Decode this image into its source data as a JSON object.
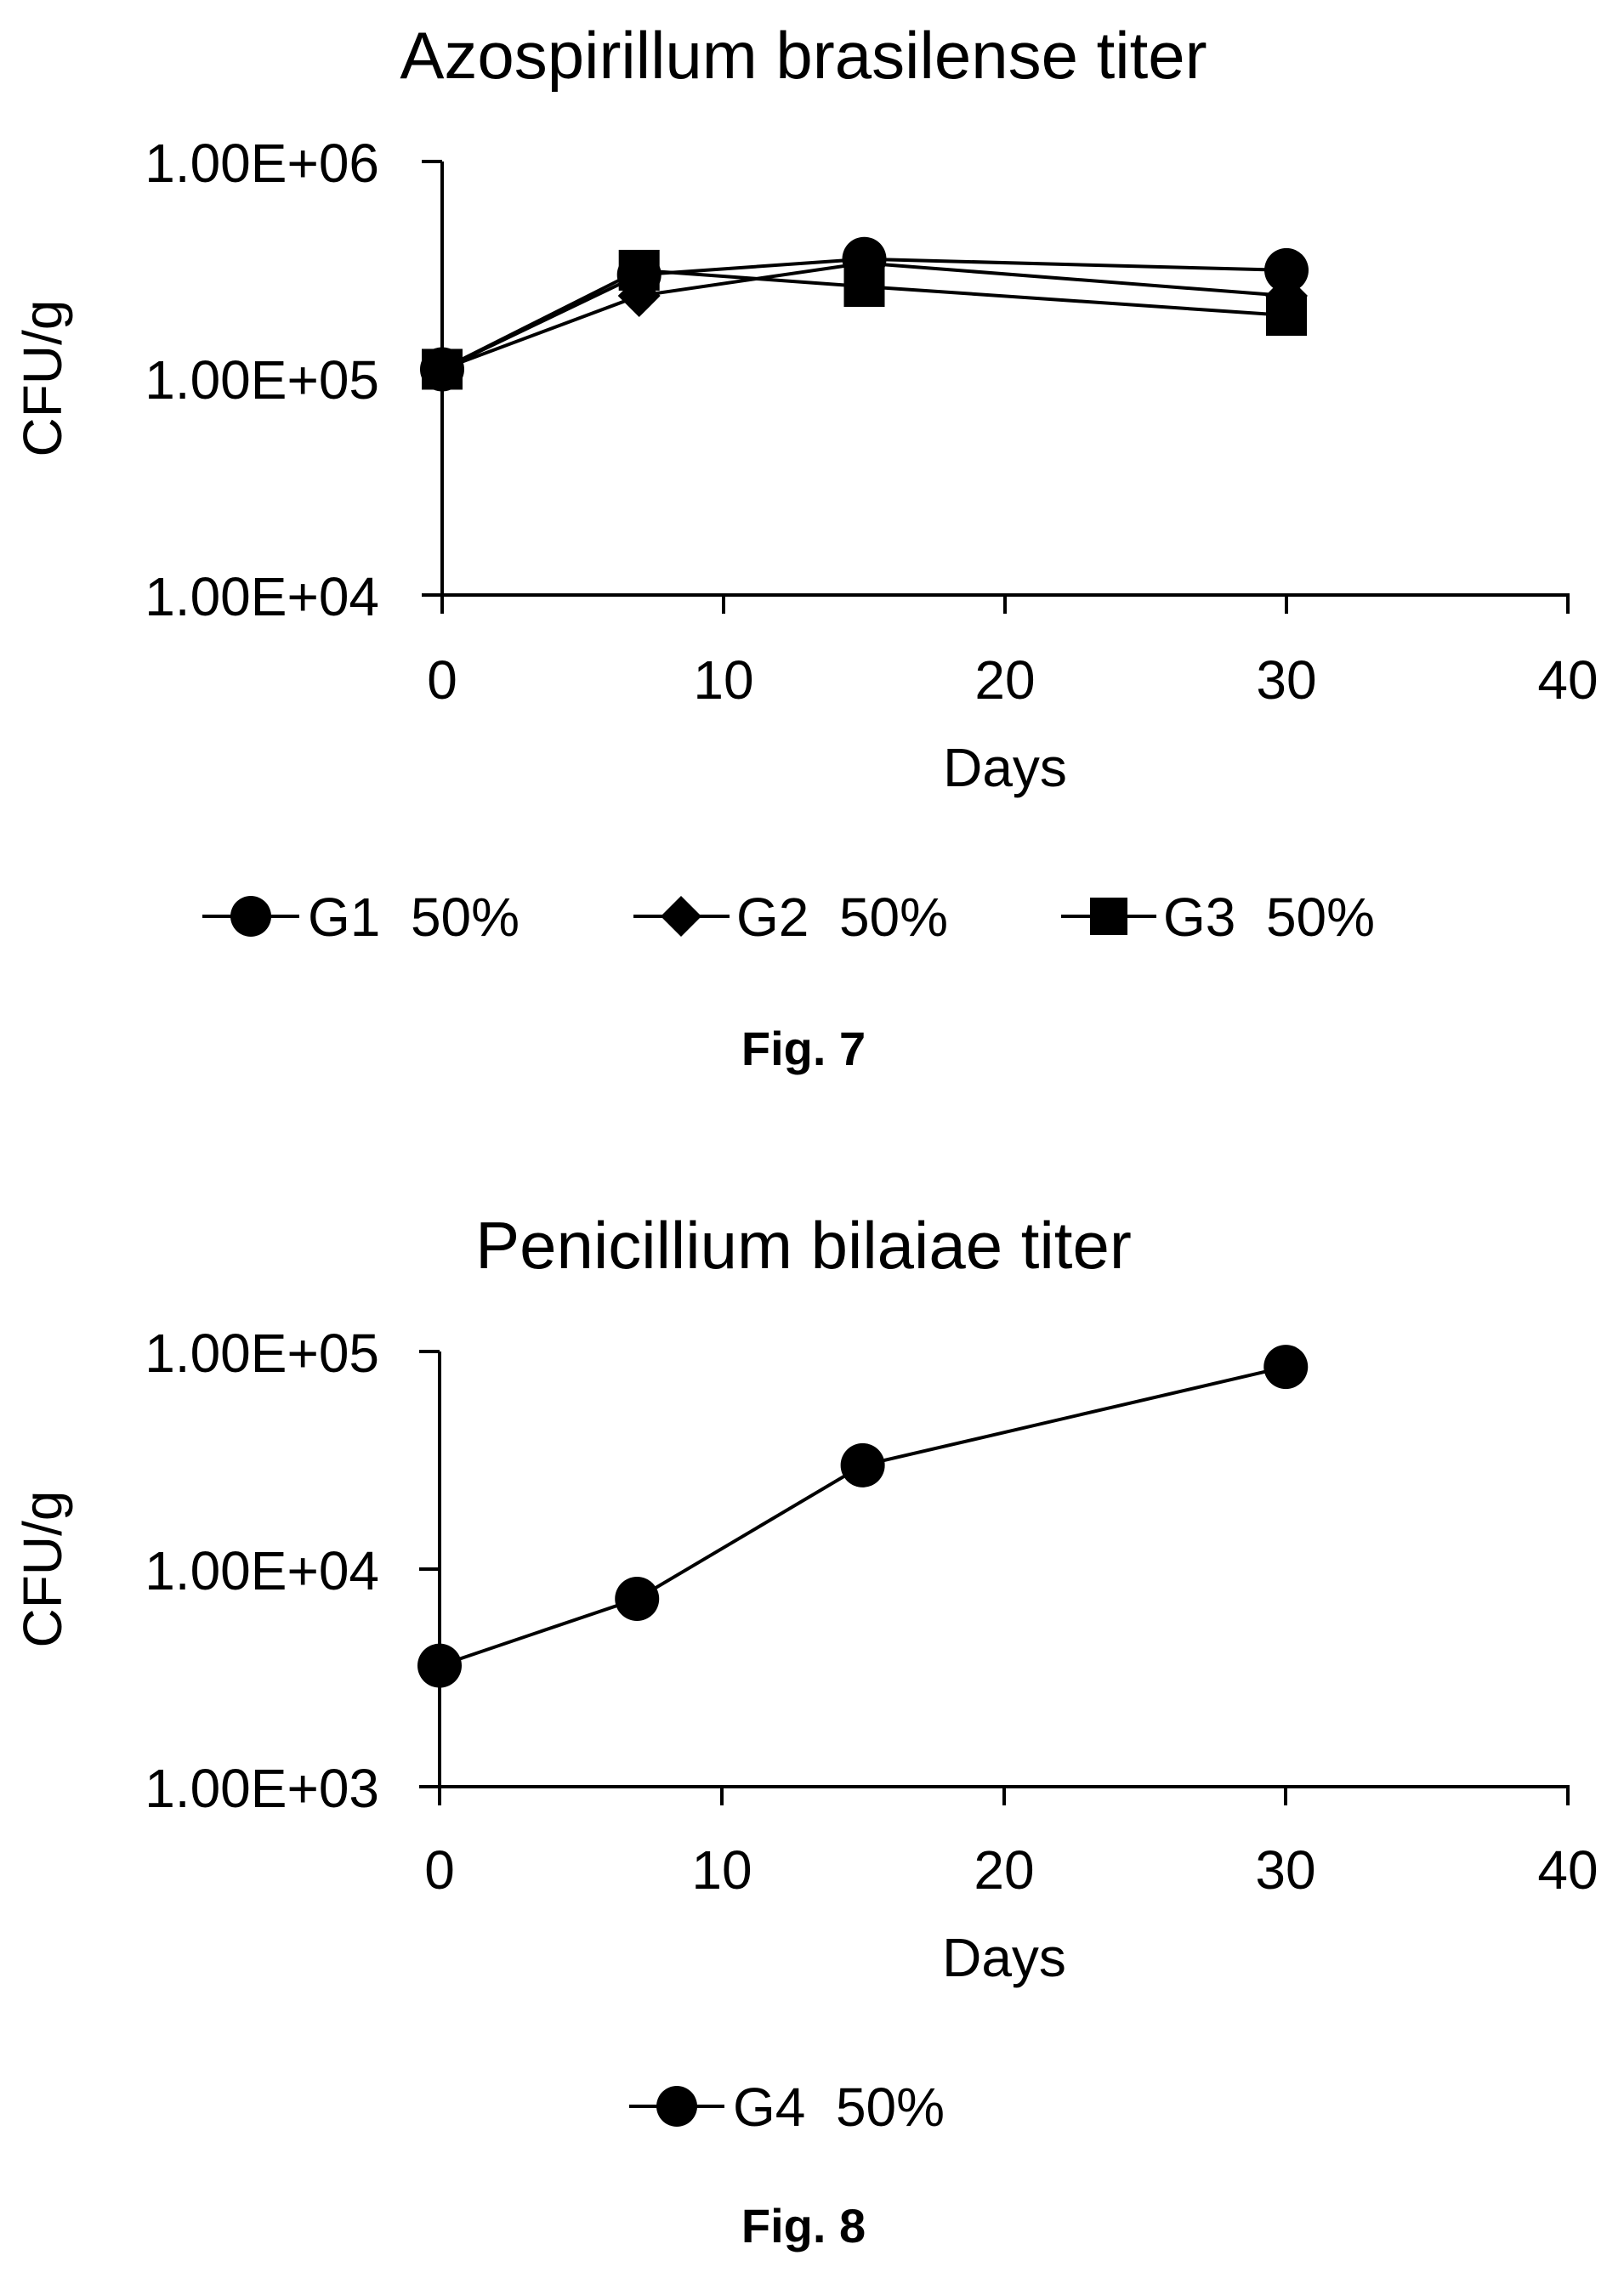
{
  "chart_data": [
    {
      "type": "line",
      "title": "Azospirillum brasilense titer",
      "xlabel": "Days",
      "ylabel": "CFU/g",
      "xlim": [
        0,
        40
      ],
      "ylim": [
        10000,
        1000000
      ],
      "yscale": "log",
      "x_ticks": [
        "0",
        "10",
        "20",
        "30",
        "40"
      ],
      "y_ticks": [
        "1.00E+04",
        "1.00E+05",
        "1.00E+06"
      ],
      "grid": false,
      "legend_position": "bottom",
      "series": [
        {
          "name": "G1  50%",
          "marker": "circle",
          "x": [
            0,
            7,
            15,
            30
          ],
          "y": [
            110000,
            300000,
            355000,
            315000
          ]
        },
        {
          "name": "G2  50%",
          "marker": "diamond",
          "x": [
            0,
            7,
            15,
            30
          ],
          "y": [
            110000,
            240000,
            340000,
            240000
          ]
        },
        {
          "name": "G3  50%",
          "marker": "square",
          "x": [
            0,
            7,
            15,
            30
          ],
          "y": [
            110000,
            315000,
            265000,
            195000
          ]
        }
      ],
      "caption": "Fig. 7"
    },
    {
      "type": "line",
      "title": "Penicillium bilaiae titer",
      "xlabel": "Days",
      "ylabel": "CFU/g",
      "xlim": [
        0,
        40
      ],
      "ylim": [
        1000,
        100000
      ],
      "yscale": "log",
      "x_ticks": [
        "0",
        "10",
        "20",
        "30",
        "40"
      ],
      "y_ticks": [
        "1.00E+03",
        "1.00E+04",
        "1.00E+05"
      ],
      "grid": false,
      "legend_position": "bottom",
      "series": [
        {
          "name": "G4  50%",
          "marker": "circle",
          "x": [
            0,
            7,
            15,
            30
          ],
          "y": [
            3600,
            7300,
            30000,
            85000
          ]
        }
      ],
      "caption": "Fig. 8"
    }
  ]
}
